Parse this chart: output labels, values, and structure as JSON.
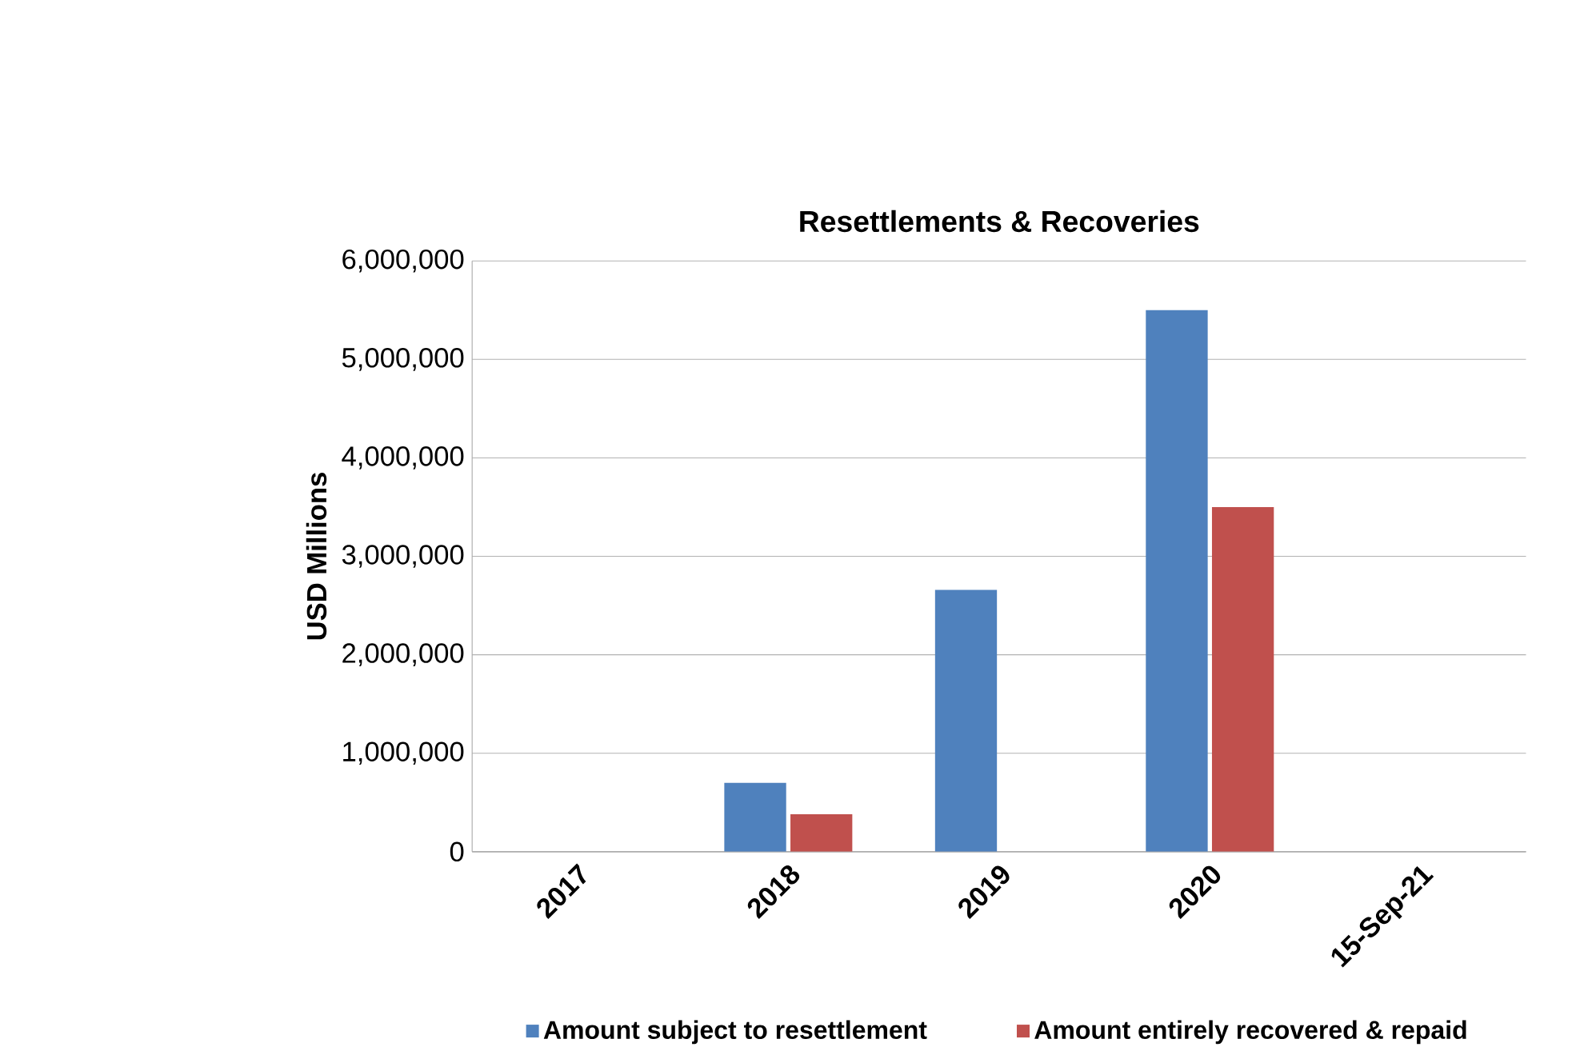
{
  "chart_data": {
    "type": "bar",
    "title": "Resettlements & Recoveries",
    "ylabel": "USD Millions",
    "categories": [
      "2017",
      "2018",
      "2019",
      "2020",
      "15-Sep-21"
    ],
    "series": [
      {
        "name": "Amount subject to resettlement",
        "color": "#4f81bd",
        "values": [
          0,
          700000,
          2660000,
          5500000,
          0
        ]
      },
      {
        "name": "Amount entirely recovered & repaid",
        "color": "#c0504d",
        "values": [
          0,
          380000,
          0,
          3500000,
          0
        ]
      }
    ],
    "ylim": [
      0,
      6000000
    ],
    "yticks": [
      {
        "value": 0,
        "label": "0"
      },
      {
        "value": 1000000,
        "label": "1,000,000"
      },
      {
        "value": 2000000,
        "label": "2,000,000"
      },
      {
        "value": 3000000,
        "label": "3,000,000"
      },
      {
        "value": 4000000,
        "label": "4,000,000"
      },
      {
        "value": 5000000,
        "label": "5,000,000"
      },
      {
        "value": 6000000,
        "label": "6,000,000"
      }
    ],
    "grid": "y",
    "legend": "bottom"
  }
}
